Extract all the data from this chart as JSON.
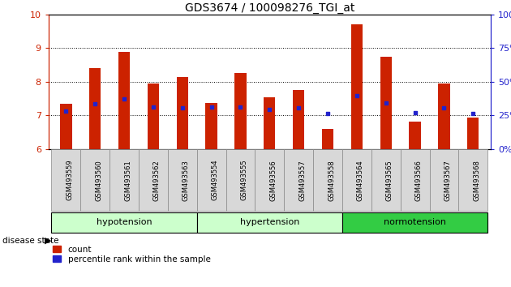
{
  "title": "GDS3674 / 100098276_TGI_at",
  "samples": [
    "GSM493559",
    "GSM493560",
    "GSM493561",
    "GSM493562",
    "GSM493563",
    "GSM493554",
    "GSM493555",
    "GSM493556",
    "GSM493557",
    "GSM493558",
    "GSM493564",
    "GSM493565",
    "GSM493566",
    "GSM493567",
    "GSM493568"
  ],
  "count_values": [
    7.35,
    8.4,
    8.88,
    7.95,
    8.15,
    7.38,
    8.25,
    7.55,
    7.75,
    6.6,
    9.7,
    8.75,
    6.82,
    7.95,
    6.95
  ],
  "percentile_values": [
    7.12,
    7.35,
    7.5,
    7.25,
    7.22,
    7.25,
    7.25,
    7.18,
    7.22,
    7.05,
    7.6,
    7.38,
    7.08,
    7.22,
    7.05
  ],
  "groups": [
    {
      "name": "hypotension",
      "indices": [
        0,
        1,
        2,
        3,
        4
      ]
    },
    {
      "name": "hypertension",
      "indices": [
        5,
        6,
        7,
        8,
        9
      ]
    },
    {
      "name": "normotension",
      "indices": [
        10,
        11,
        12,
        13,
        14
      ]
    }
  ],
  "group_colors": [
    "#ccffcc",
    "#ccffcc",
    "#33cc44"
  ],
  "ylim_left": [
    6,
    10
  ],
  "ylim_right": [
    0,
    100
  ],
  "yticks_left": [
    6,
    7,
    8,
    9,
    10
  ],
  "yticks_right": [
    0,
    25,
    50,
    75,
    100
  ],
  "bar_color": "#cc2200",
  "dot_color": "#2222cc",
  "bar_width": 0.4,
  "background_color": "#ffffff",
  "left_axis_color": "#cc2200",
  "right_axis_color": "#2222cc",
  "grid_color": "#000000",
  "right_tick_color": "#2222cc",
  "xticklabel_bg": "#d8d8d8"
}
